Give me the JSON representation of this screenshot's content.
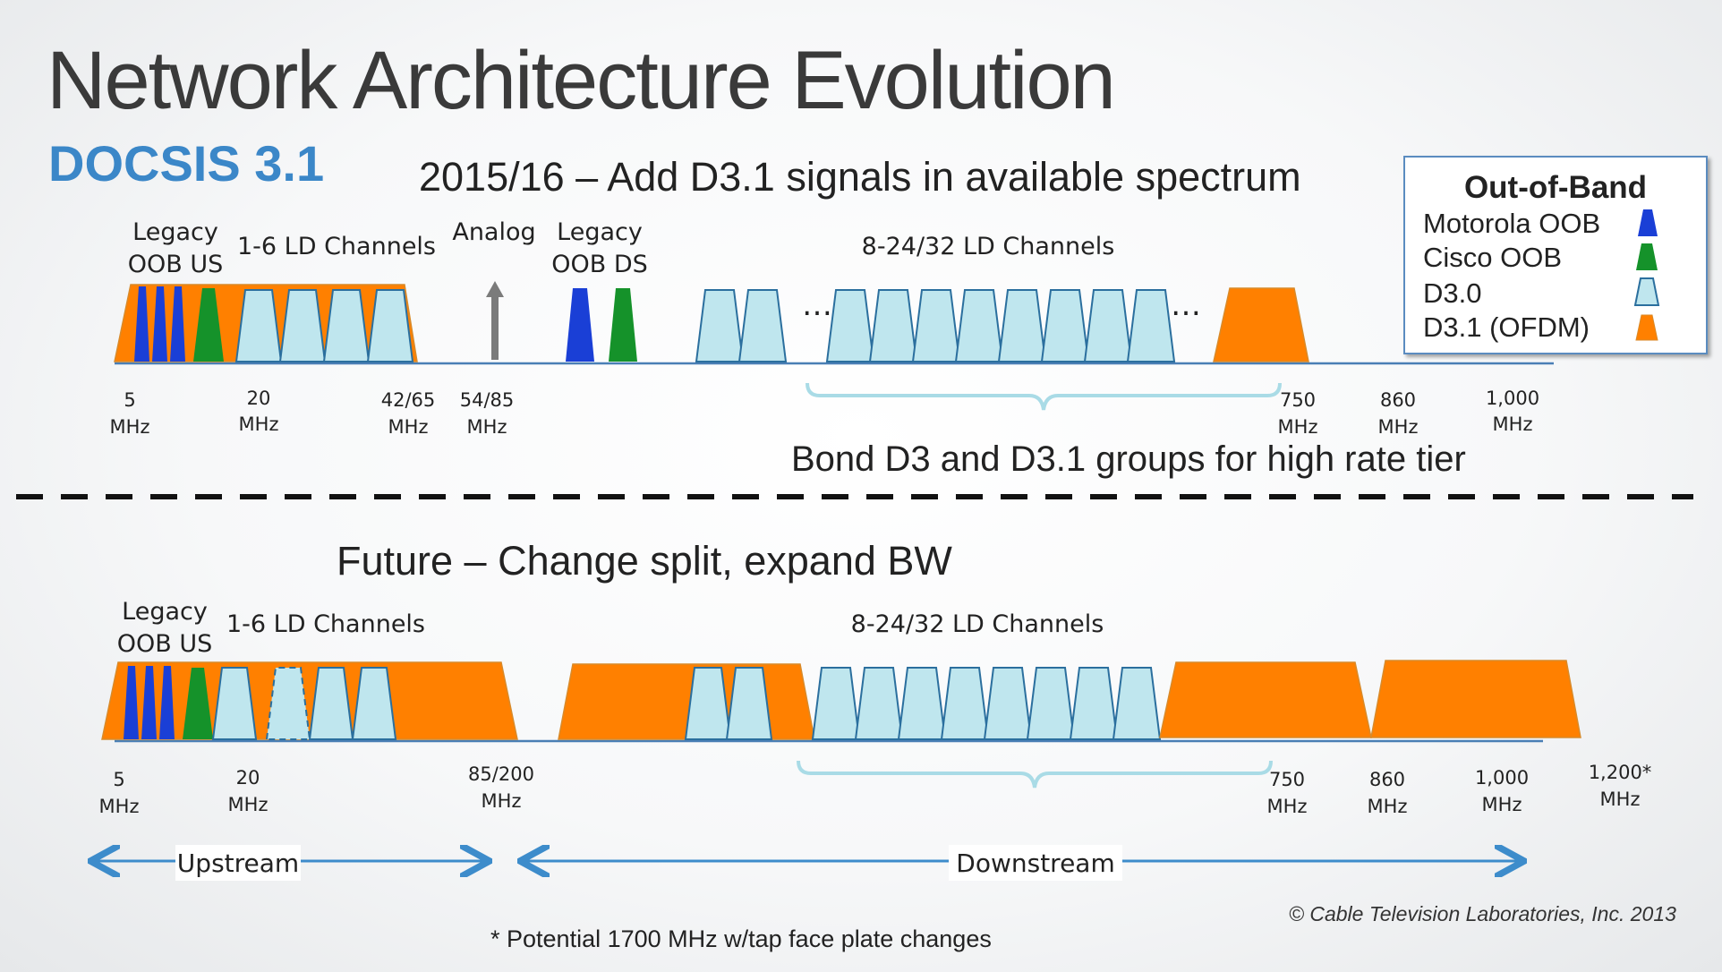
{
  "title": "Network Architecture Evolution",
  "subtitle": "DOCSIS 3.1",
  "top_section": {
    "heading": "2015/16 – Add D3.1 signals in available spectrum",
    "labels": {
      "legacy_oob_us_1": "Legacy",
      "legacy_oob_us_2": "OOB US",
      "ld_channels_us": "1-6 LD Channels",
      "analog": "Analog",
      "legacy_oob_ds_1": "Legacy",
      "legacy_oob_ds_2": "OOB DS",
      "ld_channels_ds": "8-24/32 LD Channels",
      "ellipsis": "…"
    },
    "freqs": [
      {
        "a": "5",
        "b": "MHz"
      },
      {
        "a": "20",
        "b": "MHz"
      },
      {
        "a": "42/65",
        "b": "MHz"
      },
      {
        "a": "54/85",
        "b": "MHz"
      },
      {
        "a": "750",
        "b": "MHz"
      },
      {
        "a": "860",
        "b": "MHz"
      },
      {
        "a": "1,000",
        "b": "MHz"
      }
    ],
    "bond_note": "Bond D3 and D3.1 groups for high rate tier"
  },
  "bottom_section": {
    "heading": "Future – Change split, expand BW",
    "labels": {
      "legacy_oob_us_1": "Legacy",
      "legacy_oob_us_2": "OOB US",
      "ld_channels_us": "1-6 LD Channels",
      "ld_channels_ds": "8-24/32 LD Channels"
    },
    "freqs": [
      {
        "a": "5",
        "b": "MHz"
      },
      {
        "a": "20",
        "b": "MHz"
      },
      {
        "a": "85/200",
        "b": "MHz"
      },
      {
        "a": "750",
        "b": "MHz"
      },
      {
        "a": "860",
        "b": "MHz"
      },
      {
        "a": "1,000",
        "b": "MHz"
      },
      {
        "a": "1,200*",
        "b": "MHz"
      }
    ],
    "upstream": "Upstream",
    "downstream": "Downstream"
  },
  "legend": {
    "title": "Out-of-Band",
    "items": [
      {
        "label": "Motorola OOB",
        "icon": "motorola-oob-icon",
        "color": "#1a3fd6"
      },
      {
        "label": "Cisco OOB",
        "icon": "cisco-oob-icon",
        "color": "#15922a"
      },
      {
        "label": "D3.0",
        "icon": "d30-icon",
        "color": "#bfe6ee"
      },
      {
        "label": "D3.1 (OFDM)",
        "icon": "d31-ofdm-icon",
        "color": "#ff8000"
      }
    ]
  },
  "colors": {
    "orange": "#ff8000",
    "blue_oob": "#1a3fd6",
    "green_oob": "#15922a",
    "d30_fill": "#bfe6ee",
    "d30_stroke": "#2b6f9e",
    "axis": "#4a7fb5",
    "arrow": "#3d8ccb",
    "accent_title": "#3b87c8"
  },
  "copyright": "© Cable Television Laboratories, Inc. 2013",
  "footnote": "* Potential 1700 MHz w/tap face plate changes"
}
